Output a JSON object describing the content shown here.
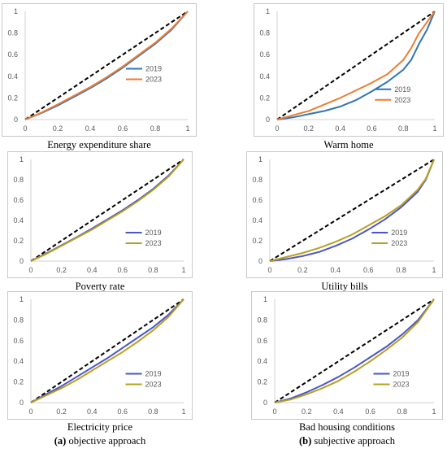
{
  "colors": {
    "equality": "#000000",
    "blue": "#2e75b6",
    "orange": "#ed7d31",
    "indigo": "#4a56c8",
    "gold": "#b8a020"
  },
  "subcaptions": {
    "left": {
      "letter": "(a)",
      "text": "objective approach"
    },
    "right": {
      "letter": "(b)",
      "text": "subjective approach"
    }
  },
  "chart_data": [
    {
      "type": "line",
      "title": "Energy expenditure share",
      "xlim": [
        0,
        1
      ],
      "ylim": [
        0,
        1
      ],
      "xticks": [
        "0",
        "0.2",
        "0.4",
        "0.6",
        "0.8",
        "1"
      ],
      "yticks": [
        "0",
        "0.2",
        "0.4",
        "0.6",
        "0.8",
        "1"
      ],
      "legend_position": "right",
      "series": [
        {
          "name": "",
          "style": "equality",
          "x": [
            0,
            1
          ],
          "y": [
            0,
            1
          ]
        },
        {
          "name": "2019",
          "color": "#2e75b6",
          "x": [
            0,
            0.1,
            0.2,
            0.3,
            0.4,
            0.5,
            0.6,
            0.7,
            0.8,
            0.9,
            1
          ],
          "y": [
            0,
            0.06,
            0.13,
            0.21,
            0.29,
            0.38,
            0.48,
            0.59,
            0.7,
            0.83,
            1
          ]
        },
        {
          "name": "2023",
          "color": "#ed7d31",
          "x": [
            0,
            0.1,
            0.2,
            0.3,
            0.4,
            0.5,
            0.6,
            0.7,
            0.8,
            0.9,
            1
          ],
          "y": [
            0,
            0.065,
            0.14,
            0.22,
            0.3,
            0.39,
            0.49,
            0.6,
            0.71,
            0.84,
            1
          ]
        }
      ]
    },
    {
      "type": "line",
      "title": "Warm home",
      "xlim": [
        0,
        1
      ],
      "ylim": [
        0,
        1
      ],
      "xticks": [
        "0",
        "0.2",
        "0.4",
        "0.6",
        "0.8",
        "1"
      ],
      "yticks": [
        "0",
        "0.2",
        "0.4",
        "0.6",
        "0.8",
        "1"
      ],
      "legend_position": "bottom-right",
      "series": [
        {
          "name": "",
          "style": "equality",
          "x": [
            0,
            1
          ],
          "y": [
            0,
            1
          ]
        },
        {
          "name": "2019",
          "color": "#2e75b6",
          "x": [
            0,
            0.1,
            0.2,
            0.3,
            0.4,
            0.5,
            0.6,
            0.7,
            0.8,
            0.85,
            0.9,
            0.95,
            1
          ],
          "y": [
            0,
            0.02,
            0.05,
            0.08,
            0.12,
            0.18,
            0.26,
            0.35,
            0.46,
            0.55,
            0.7,
            0.83,
            1
          ]
        },
        {
          "name": "2023",
          "color": "#ed7d31",
          "x": [
            0,
            0.1,
            0.2,
            0.3,
            0.4,
            0.5,
            0.6,
            0.7,
            0.8,
            0.85,
            0.9,
            0.95,
            1
          ],
          "y": [
            0,
            0.04,
            0.08,
            0.14,
            0.2,
            0.27,
            0.34,
            0.42,
            0.55,
            0.66,
            0.8,
            0.9,
            1
          ]
        }
      ]
    },
    {
      "type": "line",
      "title": "Poverty rate",
      "xlim": [
        0,
        1
      ],
      "ylim": [
        0,
        1
      ],
      "xticks": [
        "0",
        "0.2",
        "0.4",
        "0.6",
        "0.8",
        "1"
      ],
      "yticks": [
        "0",
        "0.2",
        "0.4",
        "0.6",
        "0.8",
        "1"
      ],
      "legend_position": "bottom-right",
      "series": [
        {
          "name": "",
          "style": "equality",
          "x": [
            0,
            1
          ],
          "y": [
            0,
            1
          ]
        },
        {
          "name": "2019",
          "color": "#4a56c8",
          "x": [
            0,
            0.1,
            0.2,
            0.3,
            0.4,
            0.5,
            0.6,
            0.7,
            0.8,
            0.9,
            1
          ],
          "y": [
            0,
            0.075,
            0.155,
            0.235,
            0.32,
            0.41,
            0.5,
            0.6,
            0.71,
            0.84,
            1
          ]
        },
        {
          "name": "2023",
          "color": "#b8a020",
          "x": [
            0,
            0.1,
            0.2,
            0.3,
            0.4,
            0.5,
            0.6,
            0.7,
            0.8,
            0.9,
            1
          ],
          "y": [
            0,
            0.07,
            0.15,
            0.23,
            0.31,
            0.4,
            0.49,
            0.59,
            0.7,
            0.83,
            1
          ]
        }
      ]
    },
    {
      "type": "line",
      "title": "Utility bills",
      "xlim": [
        0,
        1
      ],
      "ylim": [
        0,
        1
      ],
      "xticks": [
        "0",
        "0.2",
        "0.4",
        "0.6",
        "0.8",
        "1"
      ],
      "yticks": [
        "0",
        "0.2",
        "0.4",
        "0.6",
        "0.8",
        "1"
      ],
      "legend_position": "bottom-right",
      "series": [
        {
          "name": "",
          "style": "equality",
          "x": [
            0,
            1
          ],
          "y": [
            0,
            1
          ]
        },
        {
          "name": "2019",
          "color": "#4a56c8",
          "x": [
            0,
            0.1,
            0.2,
            0.3,
            0.4,
            0.5,
            0.6,
            0.7,
            0.8,
            0.9,
            0.95,
            1
          ],
          "y": [
            0,
            0.02,
            0.05,
            0.09,
            0.15,
            0.22,
            0.31,
            0.41,
            0.53,
            0.68,
            0.8,
            1
          ]
        },
        {
          "name": "2023",
          "color": "#b8a020",
          "x": [
            0,
            0.1,
            0.2,
            0.3,
            0.4,
            0.5,
            0.6,
            0.7,
            0.8,
            0.9,
            0.95,
            1
          ],
          "y": [
            0,
            0.04,
            0.08,
            0.13,
            0.19,
            0.26,
            0.35,
            0.44,
            0.55,
            0.7,
            0.81,
            1
          ]
        }
      ]
    },
    {
      "type": "line",
      "title": "Electricity price",
      "xlim": [
        0,
        1
      ],
      "ylim": [
        0,
        1
      ],
      "xticks": [
        "0",
        "0.2",
        "0.4",
        "0.6",
        "0.8",
        "1"
      ],
      "yticks": [
        "0",
        "0.2",
        "0.4",
        "0.6",
        "0.8",
        "1"
      ],
      "legend_position": "bottom-right",
      "series": [
        {
          "name": "",
          "style": "equality",
          "x": [
            0,
            1
          ],
          "y": [
            0,
            1
          ]
        },
        {
          "name": "2019",
          "color": "#4a56c8",
          "x": [
            0,
            0.1,
            0.2,
            0.3,
            0.4,
            0.5,
            0.6,
            0.7,
            0.8,
            0.9,
            1
          ],
          "y": [
            0,
            0.08,
            0.16,
            0.25,
            0.34,
            0.43,
            0.53,
            0.63,
            0.73,
            0.85,
            1
          ]
        },
        {
          "name": "2023",
          "color": "#b8a020",
          "x": [
            0,
            0.1,
            0.2,
            0.3,
            0.4,
            0.5,
            0.6,
            0.7,
            0.8,
            0.9,
            1
          ],
          "y": [
            0,
            0.07,
            0.14,
            0.22,
            0.31,
            0.4,
            0.49,
            0.59,
            0.7,
            0.83,
            1
          ]
        }
      ]
    },
    {
      "type": "line",
      "title": "Bad housing conditions",
      "xlim": [
        0,
        1
      ],
      "ylim": [
        0,
        1
      ],
      "xticks": [
        "0",
        "0.2",
        "0.4",
        "0.6",
        "0.8",
        "1"
      ],
      "yticks": [
        "0",
        "0.2",
        "0.4",
        "0.6",
        "0.8",
        "1"
      ],
      "legend_position": "bottom-right",
      "series": [
        {
          "name": "",
          "style": "equality",
          "x": [
            0,
            1
          ],
          "y": [
            0,
            1
          ]
        },
        {
          "name": "2019",
          "color": "#4a56c8",
          "x": [
            0,
            0.1,
            0.2,
            0.3,
            0.4,
            0.5,
            0.6,
            0.7,
            0.8,
            0.9,
            1
          ],
          "y": [
            0,
            0.04,
            0.1,
            0.17,
            0.25,
            0.34,
            0.44,
            0.54,
            0.66,
            0.8,
            1
          ]
        },
        {
          "name": "2023",
          "color": "#b8a020",
          "x": [
            0,
            0.1,
            0.2,
            0.3,
            0.4,
            0.5,
            0.6,
            0.7,
            0.8,
            0.9,
            1
          ],
          "y": [
            0,
            0.03,
            0.08,
            0.14,
            0.21,
            0.3,
            0.4,
            0.51,
            0.63,
            0.78,
            1
          ]
        }
      ]
    }
  ]
}
